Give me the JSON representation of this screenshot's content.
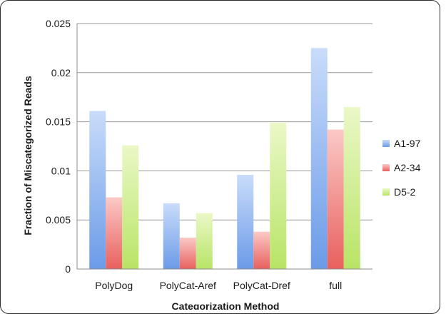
{
  "chart_data": {
    "type": "bar",
    "title": "",
    "xlabel": "Categorization Method",
    "ylabel": "Fraction of Miscategorized Reads",
    "categories": [
      "PolyDog",
      "PolyCat-Aref",
      "PolyCat-Dref",
      "full"
    ],
    "ylim": [
      0,
      0.025
    ],
    "yticks": [
      0,
      0.005,
      0.01,
      0.015,
      0.02,
      0.025
    ],
    "ytick_labels": [
      "0",
      "0.005",
      "0.01",
      "0.015",
      "0.02",
      "0.025"
    ],
    "grid": true,
    "legend_position": "right",
    "series": [
      {
        "name": "A1-97",
        "color": "#6b9be8",
        "light": "#c9dcfa",
        "values": [
          0.0161,
          0.0067,
          0.0096,
          0.0225
        ]
      },
      {
        "name": "A2-34",
        "color": "#e8605e",
        "light": "#fbc9c6",
        "values": [
          0.0073,
          0.0032,
          0.0038,
          0.0142
        ]
      },
      {
        "name": "D5-2",
        "color": "#b8e466",
        "light": "#eaf8c7",
        "values": [
          0.0126,
          0.0057,
          0.0149,
          0.0165
        ]
      }
    ]
  }
}
